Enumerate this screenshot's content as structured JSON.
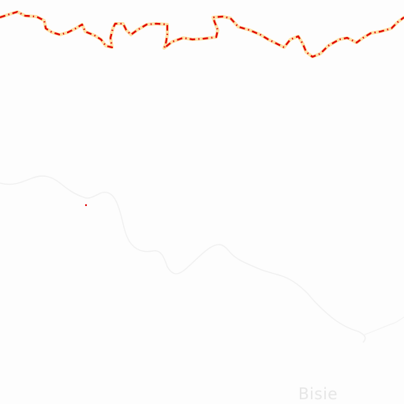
{
  "map": {
    "place_labels": {
      "bisie": "Bisie"
    },
    "colors": {
      "background": "#fdfdfd",
      "border_dash": "#e00000",
      "border_casing": "#ffb000",
      "river": "#f0f0f0",
      "label": "#e6e6e6"
    },
    "line_types": [
      "national-border",
      "river"
    ]
  }
}
